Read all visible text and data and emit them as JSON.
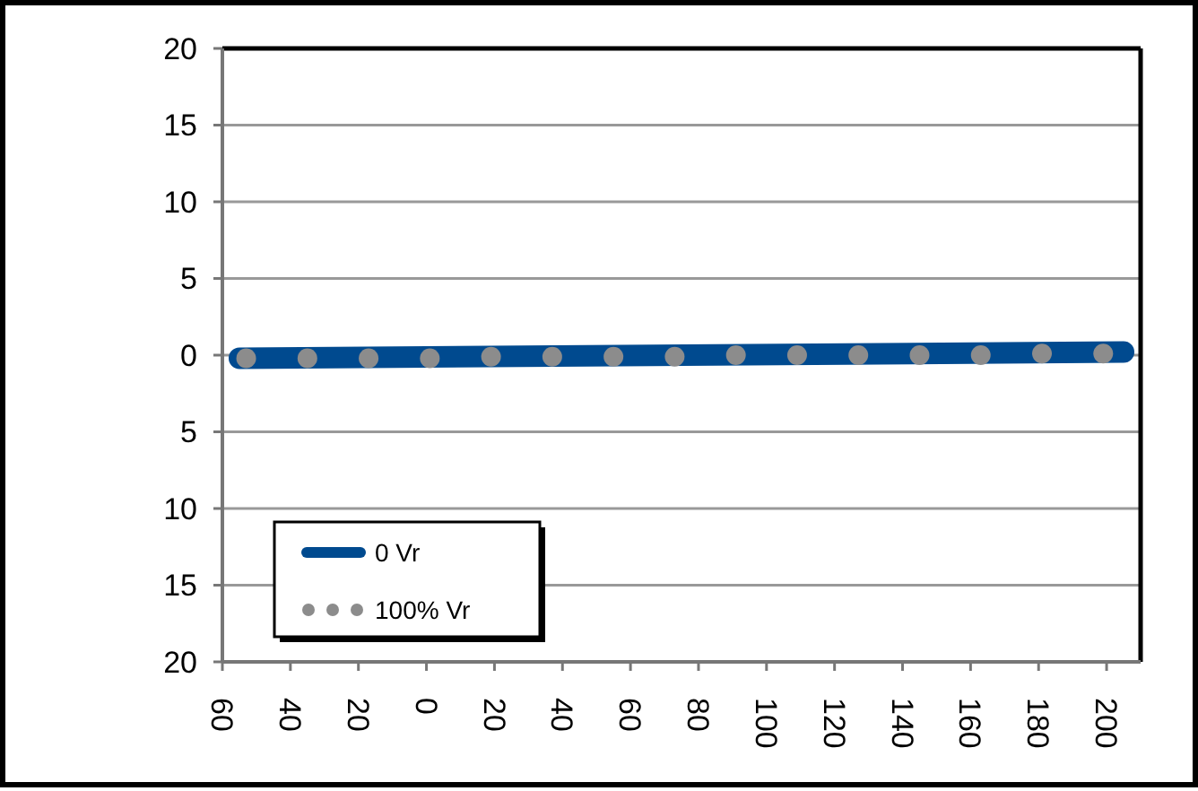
{
  "chart_data": {
    "type": "line",
    "xlim": [
      -60,
      210
    ],
    "ylim": [
      -20,
      20
    ],
    "xticks": [
      {
        "value": -60,
        "label": "60"
      },
      {
        "value": -40,
        "label": "40"
      },
      {
        "value": -20,
        "label": "20"
      },
      0,
      20,
      40,
      60,
      80,
      100,
      120,
      140,
      160,
      180,
      200
    ],
    "yticks": [
      {
        "value": -20,
        "label": "20"
      },
      {
        "value": -15,
        "label": "15"
      },
      {
        "value": -10,
        "label": "10"
      },
      {
        "value": -5,
        "label": "5"
      },
      0,
      5,
      10,
      15,
      20
    ],
    "grid": "y",
    "legend": "bottom left",
    "series": [
      {
        "name": "0 Vr",
        "color": "#004a8f",
        "x": [
          -55,
          205
        ],
        "values": [
          -0.2,
          0.2
        ]
      },
      {
        "name": "100% Vr",
        "type": "scatter",
        "marker": "circle",
        "color": "#8c8c8c",
        "x": [
          -53,
          -35,
          -17,
          1,
          19,
          37,
          55,
          73,
          91,
          109,
          127,
          145,
          163,
          181,
          199
        ],
        "values": [
          -0.2,
          -0.2,
          -0.2,
          -0.2,
          -0.1,
          -0.1,
          -0.1,
          -0.1,
          0,
          0,
          0,
          0,
          0,
          0.1,
          0.1
        ]
      }
    ]
  }
}
